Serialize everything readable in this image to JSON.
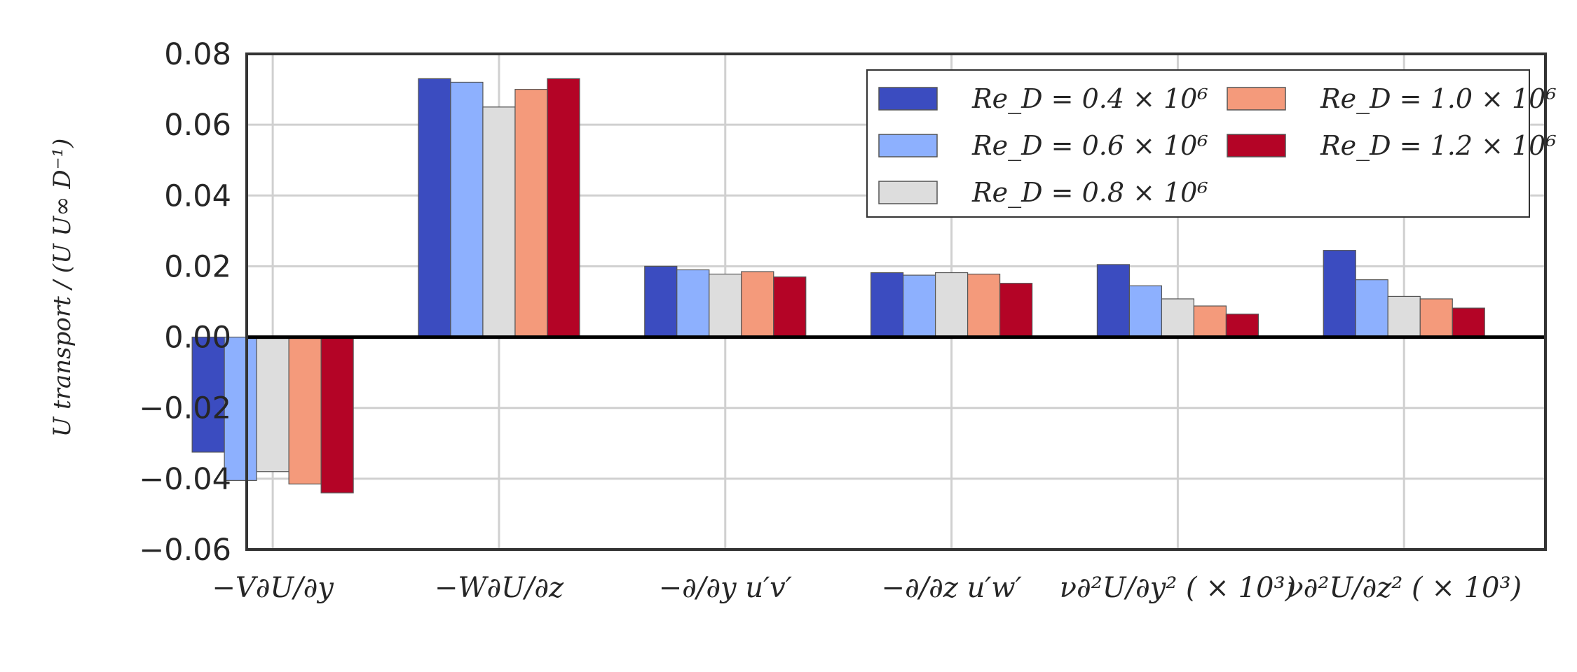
{
  "chart_data": {
    "type": "bar",
    "categories": [
      "−V∂U/∂y",
      "−W∂U/∂z",
      "−∂/∂y u′v′",
      "−∂/∂z u′w′",
      "ν∂²U/∂y² ( × 10³)",
      "ν∂²U/∂z² ( × 10³)"
    ],
    "series": [
      {
        "name": "Re_D = 0.4 × 10⁶",
        "color": "#3b4cc0",
        "values": [
          -0.0325,
          0.073,
          0.02,
          0.0182,
          0.0205,
          0.0245
        ]
      },
      {
        "name": "Re_D = 0.6 × 10⁶",
        "color": "#8db0fe",
        "values": [
          -0.0405,
          0.072,
          0.019,
          0.0175,
          0.0145,
          0.0162
        ]
      },
      {
        "name": "Re_D = 0.8 × 10⁶",
        "color": "#dddddd",
        "values": [
          -0.038,
          0.065,
          0.0178,
          0.0182,
          0.0108,
          0.0115
        ]
      },
      {
        "name": "Re_D = 1.0 × 10⁶",
        "color": "#f49a7b",
        "values": [
          -0.0415,
          0.07,
          0.0185,
          0.0178,
          0.0088,
          0.0108
        ]
      },
      {
        "name": "Re_D = 1.2 × 10⁶",
        "color": "#b40426",
        "values": [
          -0.044,
          0.073,
          0.017,
          0.0152,
          0.0065,
          0.0082
        ]
      }
    ],
    "yticks": [
      "0.08",
      "0.06",
      "0.04",
      "0.02",
      "0.00",
      "−0.02",
      "−0.04",
      "−0.06"
    ],
    "ylim": [
      -0.06,
      0.08
    ],
    "ylabel": "U transport / (U U∞ D⁻¹)",
    "xlabel": "",
    "title": "",
    "grid": true,
    "legend_position": "top-right",
    "legend_columns": 2
  }
}
